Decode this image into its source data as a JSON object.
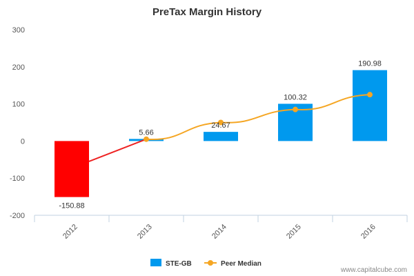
{
  "chart_data": {
    "type": "bar",
    "title": "PreTax Margin History",
    "categories": [
      "2012",
      "2013",
      "2014",
      "2015",
      "2016"
    ],
    "ylim": [
      -200,
      300
    ],
    "yticks": [
      -200,
      -100,
      0,
      100,
      200,
      300
    ],
    "ytick_labels": [
      "-200",
      "-100",
      "0",
      "100",
      "200",
      "300"
    ],
    "grid": false,
    "legend_position": "bottom",
    "series": [
      {
        "name": "STE-GB",
        "type": "bar",
        "values": [
          -150.88,
          5.66,
          24.67,
          100.32,
          190.98
        ],
        "labels": [
          "-150.88",
          "5.66",
          "24.67",
          "100.32",
          "190.98"
        ],
        "color": "#0099ee",
        "negative_color": "#ff0000"
      },
      {
        "name": "Peer Median",
        "type": "line",
        "values": [
          null,
          5,
          50,
          85,
          125
        ],
        "color": "#f5a623"
      }
    ]
  },
  "credit": "www.capitalcube.com"
}
